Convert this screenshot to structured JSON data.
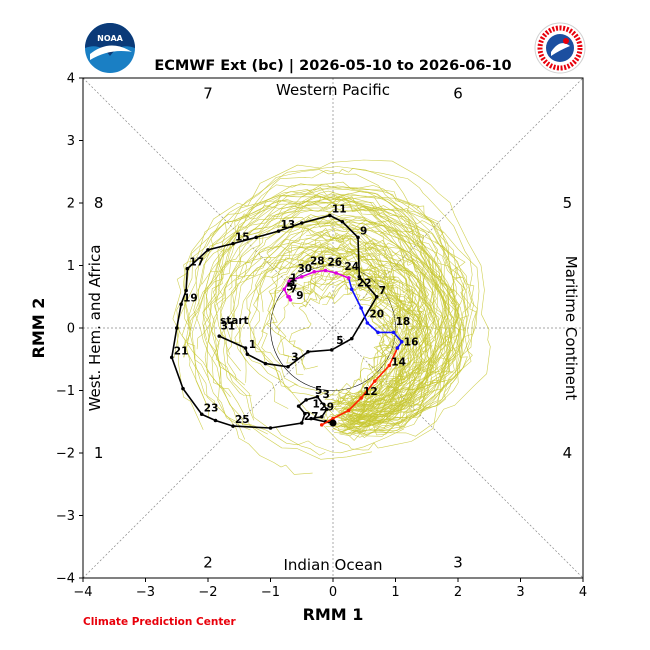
{
  "chart_data": {
    "type": "line",
    "title": "ECMWF Ext (bc) | 2026-05-10 to 2026-06-10",
    "xlabel": "RMM 1",
    "ylabel": "RMM 2",
    "xlim": [
      -4,
      4
    ],
    "ylim": [
      -4,
      4
    ],
    "x_ticks": [
      "−4",
      "−3",
      "−2",
      "−1",
      "0",
      "1",
      "2",
      "3",
      "4"
    ],
    "y_ticks": [
      "−4",
      "−3",
      "−2",
      "−1",
      "0",
      "1",
      "2",
      "3",
      "4"
    ],
    "grid": false,
    "unit_circle_radius": 1,
    "phase_labels": [
      {
        "label": "1",
        "x": -3.75,
        "y": -2.0
      },
      {
        "label": "2",
        "x": -2.0,
        "y": -3.75
      },
      {
        "label": "3",
        "x": 2.0,
        "y": -3.75
      },
      {
        "label": "4",
        "x": 3.75,
        "y": -2.0
      },
      {
        "label": "5",
        "x": 3.75,
        "y": 2.0
      },
      {
        "label": "6",
        "x": 2.0,
        "y": 3.75
      },
      {
        "label": "7",
        "x": -2.0,
        "y": 3.75
      },
      {
        "label": "8",
        "x": -3.75,
        "y": 2.0
      }
    ],
    "region_labels": {
      "top": "Western Pacific",
      "bottom": "Indian Ocean",
      "left": "West. Hem. and Africa",
      "right": "Maritime Continent"
    },
    "start_label": "start",
    "series": [
      {
        "color": "#000000",
        "points": [
          {
            "x": -1.82,
            "y": -0.13,
            "label": "31"
          },
          {
            "x": -1.4,
            "y": -0.32
          },
          {
            "x": -1.37,
            "y": -0.42,
            "label": "1"
          },
          {
            "x": -1.08,
            "y": -0.57
          },
          {
            "x": -0.72,
            "y": -0.62,
            "label": "3"
          },
          {
            "x": -0.4,
            "y": -0.38
          },
          {
            "x": -0.02,
            "y": -0.35,
            "label": "5"
          },
          {
            "x": 0.3,
            "y": -0.17
          },
          {
            "x": 0.7,
            "y": 0.5,
            "label": "7"
          },
          {
            "x": 0.42,
            "y": 0.82
          },
          {
            "x": 0.4,
            "y": 1.45,
            "label": "9"
          },
          {
            "x": 0.15,
            "y": 1.7
          },
          {
            "x": -0.05,
            "y": 1.8,
            "label": "11"
          },
          {
            "x": -0.5,
            "y": 1.68
          },
          {
            "x": -0.87,
            "y": 1.55,
            "label": "13"
          },
          {
            "x": -1.23,
            "y": 1.45
          },
          {
            "x": -1.6,
            "y": 1.35,
            "label": "15"
          },
          {
            "x": -2.0,
            "y": 1.25
          },
          {
            "x": -2.33,
            "y": 0.95,
            "label": "17"
          },
          {
            "x": -2.35,
            "y": 0.6
          },
          {
            "x": -2.43,
            "y": 0.38,
            "label": "19"
          },
          {
            "x": -2.5,
            "y": 0.0
          },
          {
            "x": -2.58,
            "y": -0.47,
            "label": "21"
          },
          {
            "x": -2.4,
            "y": -0.97
          },
          {
            "x": -2.1,
            "y": -1.38,
            "label": "23"
          },
          {
            "x": -1.88,
            "y": -1.48
          },
          {
            "x": -1.6,
            "y": -1.57,
            "label": "25"
          },
          {
            "x": -1.0,
            "y": -1.6
          },
          {
            "x": -0.5,
            "y": -1.52,
            "label": "27"
          },
          {
            "x": -0.45,
            "y": -1.37
          },
          {
            "x": -0.55,
            "y": -1.25,
            "label": "29"
          },
          {
            "x": -0.43,
            "y": -1.15
          },
          {
            "x": -0.25,
            "y": -1.1,
            "label": "1"
          },
          {
            "x": -0.1,
            "y": -1.3
          },
          {
            "x": -0.18,
            "y": -1.42
          },
          {
            "x": -0.35,
            "y": -1.45
          },
          {
            "x": -0.12,
            "y": -1.5
          },
          {
            "x": 0.0,
            "y": -1.52
          }
        ]
      },
      {
        "color": "#ff2200",
        "points": [
          {
            "x": -0.18,
            "y": -1.55
          },
          {
            "x": 0.0,
            "y": -1.45
          },
          {
            "x": 0.25,
            "y": -1.32
          },
          {
            "x": 0.45,
            "y": -1.12,
            "label": "12"
          },
          {
            "x": 0.67,
            "y": -0.85
          },
          {
            "x": 0.9,
            "y": -0.6,
            "label": "14"
          },
          {
            "x": 1.03,
            "y": -0.32
          }
        ]
      },
      {
        "color": "#1111ff",
        "points": [
          {
            "x": 1.03,
            "y": -0.32
          },
          {
            "x": 1.1,
            "y": -0.22,
            "label": "16"
          },
          {
            "x": 0.97,
            "y": -0.07
          },
          {
            "x": 0.72,
            "y": -0.07,
            "label": "18"
          },
          {
            "x": 0.55,
            "y": 0.08
          },
          {
            "x": 0.45,
            "y": 0.32,
            "label": "20"
          },
          {
            "x": 0.3,
            "y": 0.62
          },
          {
            "x": 0.25,
            "y": 0.8,
            "label": "22"
          }
        ]
      },
      {
        "color": "#dd00dd",
        "points": [
          {
            "x": 0.25,
            "y": 0.8
          },
          {
            "x": 0.05,
            "y": 0.88,
            "label": "24"
          },
          {
            "x": -0.12,
            "y": 0.92
          },
          {
            "x": -0.3,
            "y": 0.9,
            "label": "26"
          },
          {
            "x": -0.5,
            "y": 0.82
          },
          {
            "x": -0.7,
            "y": 0.75,
            "label": "28"
          },
          {
            "x": -0.78,
            "y": 0.62
          },
          {
            "x": -0.72,
            "y": 0.5
          },
          {
            "x": -0.68,
            "y": 0.45
          },
          {
            "x": -0.7,
            "y": 0.5
          }
        ]
      }
    ],
    "day_labels": [
      {
        "label": "31",
        "x": -1.83,
        "y": -0.07
      },
      {
        "label": "1",
        "x": -1.38,
        "y": -0.37
      },
      {
        "label": "3",
        "x": -0.7,
        "y": -0.57
      },
      {
        "label": "5",
        "x": 0.02,
        "y": -0.3
      },
      {
        "label": "7",
        "x": 0.7,
        "y": 0.5
      },
      {
        "label": "9",
        "x": 0.4,
        "y": 1.45
      },
      {
        "label": "11",
        "x": -0.05,
        "y": 1.8
      },
      {
        "label": "13",
        "x": -0.87,
        "y": 1.55
      },
      {
        "label": "15",
        "x": -1.6,
        "y": 1.35
      },
      {
        "label": "17",
        "x": -2.33,
        "y": 0.95
      },
      {
        "label": "19",
        "x": -2.43,
        "y": 0.38
      },
      {
        "label": "21",
        "x": -2.58,
        "y": -0.47
      },
      {
        "label": "23",
        "x": -2.1,
        "y": -1.38
      },
      {
        "label": "25",
        "x": -1.6,
        "y": -1.57
      },
      {
        "label": "27",
        "x": -0.5,
        "y": -1.52
      },
      {
        "label": "29",
        "x": -0.25,
        "y": -1.37
      },
      {
        "label": "5",
        "x": -0.32,
        "y": -1.1
      },
      {
        "label": "3",
        "x": -0.2,
        "y": -1.17
      },
      {
        "label": "1",
        "x": -0.36,
        "y": -1.32
      },
      {
        "label": "12",
        "x": 0.45,
        "y": -1.12
      },
      {
        "label": "14",
        "x": 0.9,
        "y": -0.65
      },
      {
        "label": "16",
        "x": 1.1,
        "y": -0.33
      },
      {
        "label": "18",
        "x": 0.97,
        "y": 0.0
      },
      {
        "label": "20",
        "x": 0.55,
        "y": 0.12
      },
      {
        "label": "22",
        "x": 0.35,
        "y": 0.62
      },
      {
        "label": "24",
        "x": 0.15,
        "y": 0.88
      },
      {
        "label": "26",
        "x": -0.12,
        "y": 0.95
      },
      {
        "label": "28",
        "x": -0.4,
        "y": 0.97
      },
      {
        "label": "30",
        "x": -0.6,
        "y": 0.85
      },
      {
        "label": "1",
        "x": -0.72,
        "y": 0.7
      },
      {
        "label": "3",
        "x": -0.75,
        "y": 0.63
      },
      {
        "label": "5",
        "x": -0.78,
        "y": 0.55
      },
      {
        "label": "7",
        "x": -0.72,
        "y": 0.52
      },
      {
        "label": "9",
        "x": -0.62,
        "y": 0.42
      }
    ],
    "ensemble": {
      "color": "#c8c832",
      "member_count": 100,
      "description_visible": false
    }
  },
  "credits": {
    "left": "Climate Prediction Center"
  },
  "logos": {
    "left": "NOAA",
    "right": "NATIONAL WEATHER SERVICE"
  }
}
